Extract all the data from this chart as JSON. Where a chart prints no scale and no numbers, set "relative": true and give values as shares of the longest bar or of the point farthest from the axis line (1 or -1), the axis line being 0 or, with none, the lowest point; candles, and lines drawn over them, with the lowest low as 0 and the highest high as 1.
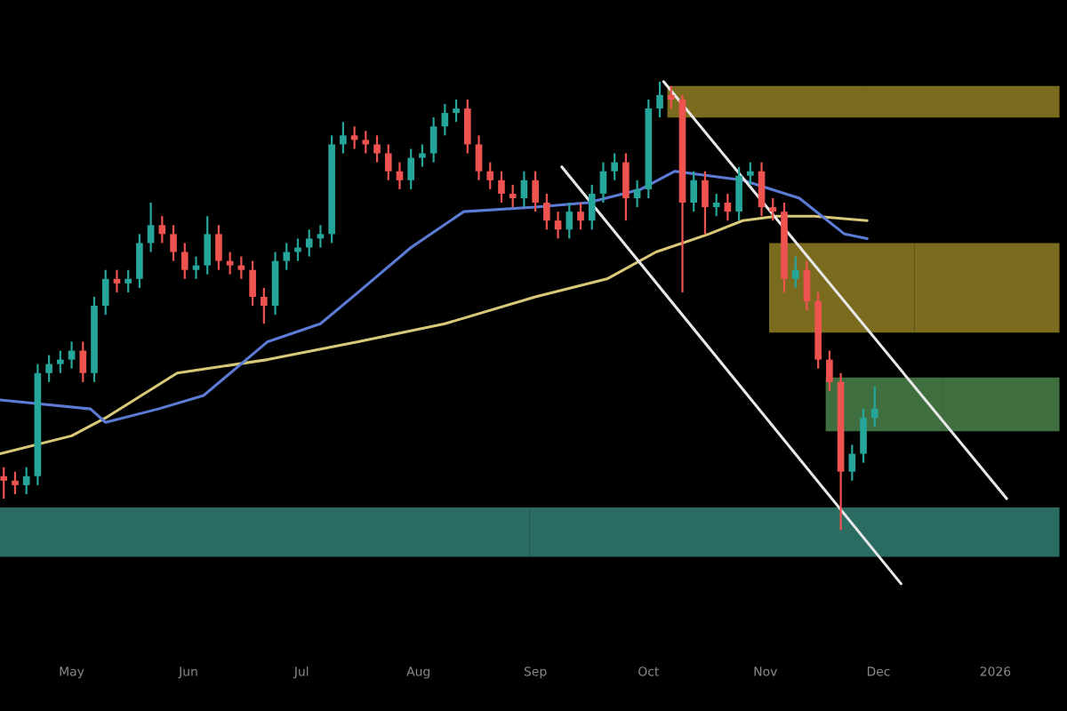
{
  "chart_data": {
    "type": "candlestick",
    "relative": true,
    "tick_labels": "x",
    "xlim": [
      "2025-04-12",
      "2026-01-20"
    ],
    "xticks": [
      {
        "value": "2025-05-01",
        "label": "May"
      },
      {
        "value": "2025-06-01",
        "label": "Jun"
      },
      {
        "value": "2025-07-01",
        "label": "Jul"
      },
      {
        "value": "2025-08-01",
        "label": "Aug"
      },
      {
        "value": "2025-09-01",
        "label": "Sep"
      },
      {
        "value": "2025-10-01",
        "label": "Oct"
      },
      {
        "value": "2025-11-01",
        "label": "Nov"
      },
      {
        "value": "2025-12-01",
        "label": "Dec"
      },
      {
        "value": "2026-01-01",
        "label": "2026"
      }
    ],
    "x": [
      "2025-04-13",
      "2025-04-16",
      "2025-04-19",
      "2025-04-22",
      "2025-04-25",
      "2025-04-28",
      "2025-05-01",
      "2025-05-04",
      "2025-05-07",
      "2025-05-10",
      "2025-05-13",
      "2025-05-16",
      "2025-05-19",
      "2025-05-22",
      "2025-05-25",
      "2025-05-28",
      "2025-05-31",
      "2025-06-03",
      "2025-06-06",
      "2025-06-09",
      "2025-06-12",
      "2025-06-15",
      "2025-06-18",
      "2025-06-21",
      "2025-06-24",
      "2025-06-27",
      "2025-06-30",
      "2025-07-03",
      "2025-07-06",
      "2025-07-09",
      "2025-07-12",
      "2025-07-15",
      "2025-07-18",
      "2025-07-21",
      "2025-07-24",
      "2025-07-27",
      "2025-07-30",
      "2025-08-02",
      "2025-08-05",
      "2025-08-08",
      "2025-08-11",
      "2025-08-14",
      "2025-08-17",
      "2025-08-20",
      "2025-08-23",
      "2025-08-26",
      "2025-08-29",
      "2025-09-01",
      "2025-09-04",
      "2025-09-07",
      "2025-09-10",
      "2025-09-13",
      "2025-09-16",
      "2025-09-19",
      "2025-09-22",
      "2025-09-25",
      "2025-09-28",
      "2025-10-01",
      "2025-10-04",
      "2025-10-07",
      "2025-10-10",
      "2025-10-13",
      "2025-10-16",
      "2025-10-19",
      "2025-10-22",
      "2025-10-25",
      "2025-10-28",
      "2025-10-31",
      "2025-11-03",
      "2025-11-06",
      "2025-11-09",
      "2025-11-12",
      "2025-11-15",
      "2025-11-18",
      "2025-11-21",
      "2025-11-24",
      "2025-11-27",
      "2025-11-30"
    ],
    "ohlc": [
      [
        0.12,
        0.14,
        0.07,
        0.11
      ],
      [
        0.11,
        0.13,
        0.08,
        0.1
      ],
      [
        0.1,
        0.14,
        0.08,
        0.12
      ],
      [
        0.12,
        0.37,
        0.1,
        0.35
      ],
      [
        0.35,
        0.39,
        0.33,
        0.37
      ],
      [
        0.37,
        0.4,
        0.35,
        0.38
      ],
      [
        0.38,
        0.42,
        0.36,
        0.4
      ],
      [
        0.4,
        0.42,
        0.33,
        0.35
      ],
      [
        0.35,
        0.52,
        0.33,
        0.5
      ],
      [
        0.5,
        0.58,
        0.48,
        0.56
      ],
      [
        0.56,
        0.58,
        0.53,
        0.55
      ],
      [
        0.55,
        0.58,
        0.53,
        0.56
      ],
      [
        0.56,
        0.66,
        0.54,
        0.64
      ],
      [
        0.64,
        0.73,
        0.62,
        0.68
      ],
      [
        0.68,
        0.7,
        0.64,
        0.66
      ],
      [
        0.66,
        0.68,
        0.6,
        0.62
      ],
      [
        0.62,
        0.64,
        0.56,
        0.58
      ],
      [
        0.58,
        0.61,
        0.56,
        0.59
      ],
      [
        0.59,
        0.7,
        0.57,
        0.66
      ],
      [
        0.66,
        0.68,
        0.58,
        0.6
      ],
      [
        0.6,
        0.62,
        0.57,
        0.59
      ],
      [
        0.59,
        0.61,
        0.56,
        0.58
      ],
      [
        0.58,
        0.6,
        0.5,
        0.52
      ],
      [
        0.52,
        0.54,
        0.46,
        0.5
      ],
      [
        0.5,
        0.62,
        0.48,
        0.6
      ],
      [
        0.6,
        0.64,
        0.58,
        0.62
      ],
      [
        0.62,
        0.65,
        0.6,
        0.63
      ],
      [
        0.63,
        0.67,
        0.61,
        0.65
      ],
      [
        0.65,
        0.68,
        0.63,
        0.66
      ],
      [
        0.66,
        0.88,
        0.64,
        0.86
      ],
      [
        0.86,
        0.91,
        0.84,
        0.88
      ],
      [
        0.88,
        0.9,
        0.85,
        0.87
      ],
      [
        0.87,
        0.89,
        0.84,
        0.86
      ],
      [
        0.86,
        0.88,
        0.82,
        0.84
      ],
      [
        0.84,
        0.86,
        0.78,
        0.8
      ],
      [
        0.8,
        0.82,
        0.76,
        0.78
      ],
      [
        0.78,
        0.85,
        0.76,
        0.83
      ],
      [
        0.83,
        0.86,
        0.81,
        0.84
      ],
      [
        0.84,
        0.92,
        0.82,
        0.9
      ],
      [
        0.9,
        0.95,
        0.88,
        0.93
      ],
      [
        0.93,
        0.96,
        0.91,
        0.94
      ],
      [
        0.94,
        0.96,
        0.84,
        0.86
      ],
      [
        0.86,
        0.88,
        0.78,
        0.8
      ],
      [
        0.8,
        0.82,
        0.76,
        0.78
      ],
      [
        0.78,
        0.8,
        0.73,
        0.75
      ],
      [
        0.75,
        0.77,
        0.72,
        0.74
      ],
      [
        0.74,
        0.8,
        0.72,
        0.78
      ],
      [
        0.78,
        0.8,
        0.71,
        0.73
      ],
      [
        0.73,
        0.75,
        0.67,
        0.69
      ],
      [
        0.69,
        0.71,
        0.65,
        0.67
      ],
      [
        0.67,
        0.73,
        0.65,
        0.71
      ],
      [
        0.71,
        0.73,
        0.67,
        0.69
      ],
      [
        0.69,
        0.77,
        0.67,
        0.75
      ],
      [
        0.75,
        0.82,
        0.73,
        0.8
      ],
      [
        0.8,
        0.84,
        0.78,
        0.82
      ],
      [
        0.82,
        0.84,
        0.69,
        0.74
      ],
      [
        0.74,
        0.78,
        0.72,
        0.76
      ],
      [
        0.76,
        0.96,
        0.74,
        0.94
      ],
      [
        0.94,
        1.0,
        0.92,
        0.97
      ],
      [
        0.97,
        0.99,
        0.94,
        0.96
      ],
      [
        0.96,
        0.97,
        0.53,
        0.73
      ],
      [
        0.73,
        0.8,
        0.71,
        0.78
      ],
      [
        0.78,
        0.8,
        0.66,
        0.72
      ],
      [
        0.72,
        0.75,
        0.7,
        0.73
      ],
      [
        0.73,
        0.75,
        0.69,
        0.71
      ],
      [
        0.71,
        0.81,
        0.69,
        0.79
      ],
      [
        0.79,
        0.82,
        0.77,
        0.8
      ],
      [
        0.8,
        0.82,
        0.7,
        0.72
      ],
      [
        0.72,
        0.74,
        0.69,
        0.71
      ],
      [
        0.71,
        0.73,
        0.53,
        0.56
      ],
      [
        0.56,
        0.61,
        0.54,
        0.58
      ],
      [
        0.58,
        0.6,
        0.49,
        0.51
      ],
      [
        0.51,
        0.53,
        0.36,
        0.38
      ],
      [
        0.38,
        0.4,
        0.31,
        0.33
      ],
      [
        0.33,
        0.35,
        0.0,
        0.13
      ],
      [
        0.13,
        0.19,
        0.11,
        0.17
      ],
      [
        0.17,
        0.27,
        0.15,
        0.25
      ],
      [
        0.25,
        0.32,
        0.23,
        0.27
      ]
    ],
    "series": [
      {
        "type": "bar",
        "color": "#2a6b62",
        "x": [
          "2025-04-12",
          "2026-01-18"
        ],
        "base": [
          -0.06,
          -0.06
        ],
        "values": [
          0.11,
          0.11
        ]
      },
      {
        "type": "bar",
        "color": "#7a6b1e",
        "x": [
          "2025-10-06",
          "2026-01-18"
        ],
        "base": [
          0.92,
          0.92
        ],
        "values": [
          0.07,
          0.07
        ]
      },
      {
        "type": "bar",
        "color": "#7a6b1e",
        "x": [
          "2025-11-02",
          "2026-01-18"
        ],
        "base": [
          0.44,
          0.44
        ],
        "values": [
          0.2,
          0.2
        ]
      },
      {
        "type": "bar",
        "color": "#3f6e3f",
        "x": [
          "2025-11-17",
          "2026-01-18"
        ],
        "base": [
          0.22,
          0.22
        ],
        "values": [
          0.12,
          0.12
        ]
      },
      {
        "type": "line",
        "color": "#d8c878",
        "x": [
          "2025-04-12",
          "2025-05-01",
          "2025-05-10",
          "2025-05-29",
          "2025-06-22",
          "2025-07-16",
          "2025-08-08",
          "2025-09-01",
          "2025-09-20",
          "2025-10-03",
          "2025-10-17",
          "2025-10-26",
          "2025-11-04",
          "2025-11-14",
          "2025-11-28"
        ],
        "values": [
          0.17,
          0.21,
          0.25,
          0.35,
          0.38,
          0.42,
          0.46,
          0.52,
          0.56,
          0.62,
          0.66,
          0.69,
          0.7,
          0.7,
          0.69
        ]
      },
      {
        "type": "line",
        "color": "#5b7bd5",
        "x": [
          "2025-04-12",
          "2025-05-06",
          "2025-05-10",
          "2025-05-24",
          "2025-06-05",
          "2025-06-22",
          "2025-07-06",
          "2025-07-16",
          "2025-07-30",
          "2025-08-13",
          "2025-09-01",
          "2025-09-15",
          "2025-09-29",
          "2025-10-08",
          "2025-10-17",
          "2025-10-26",
          "2025-11-10",
          "2025-11-22",
          "2025-11-28"
        ],
        "values": [
          0.29,
          0.27,
          0.24,
          0.27,
          0.3,
          0.42,
          0.46,
          0.53,
          0.63,
          0.71,
          0.72,
          0.73,
          0.76,
          0.8,
          0.79,
          0.78,
          0.74,
          0.66,
          0.65
        ]
      },
      {
        "type": "line",
        "color": "#e8e8e8",
        "x": [
          "2025-10-05",
          "2026-01-04"
        ],
        "values": [
          1.0,
          0.07
        ]
      },
      {
        "type": "line",
        "color": "#e8e8e8",
        "x": [
          "2025-09-08",
          "2025-12-07"
        ],
        "values": [
          0.81,
          -0.12
        ]
      }
    ]
  }
}
